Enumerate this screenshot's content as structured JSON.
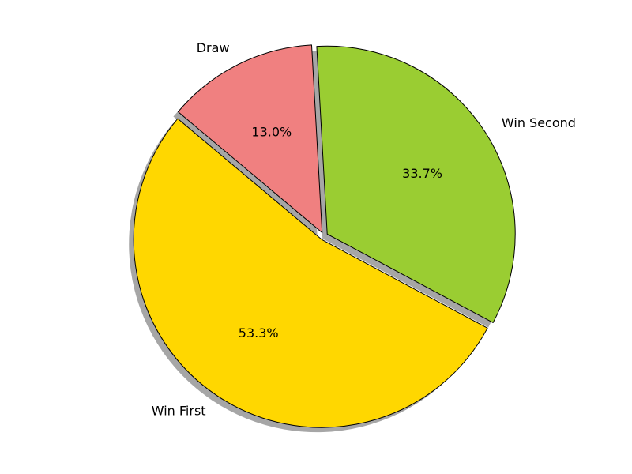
{
  "chart_data": {
    "type": "pie",
    "title": "",
    "labels": [
      "Win First",
      "Win Second",
      "Draw"
    ],
    "values": [
      53.3,
      33.7,
      13.0
    ],
    "percent_labels": [
      "53.3%",
      "33.7%",
      "13.0%"
    ],
    "colors": [
      "#ffd700",
      "#9acd32",
      "#f08080"
    ],
    "edge_color": "#000000",
    "shadow": true,
    "exploded": true,
    "start_angle_deg": 140,
    "legend": "none"
  }
}
